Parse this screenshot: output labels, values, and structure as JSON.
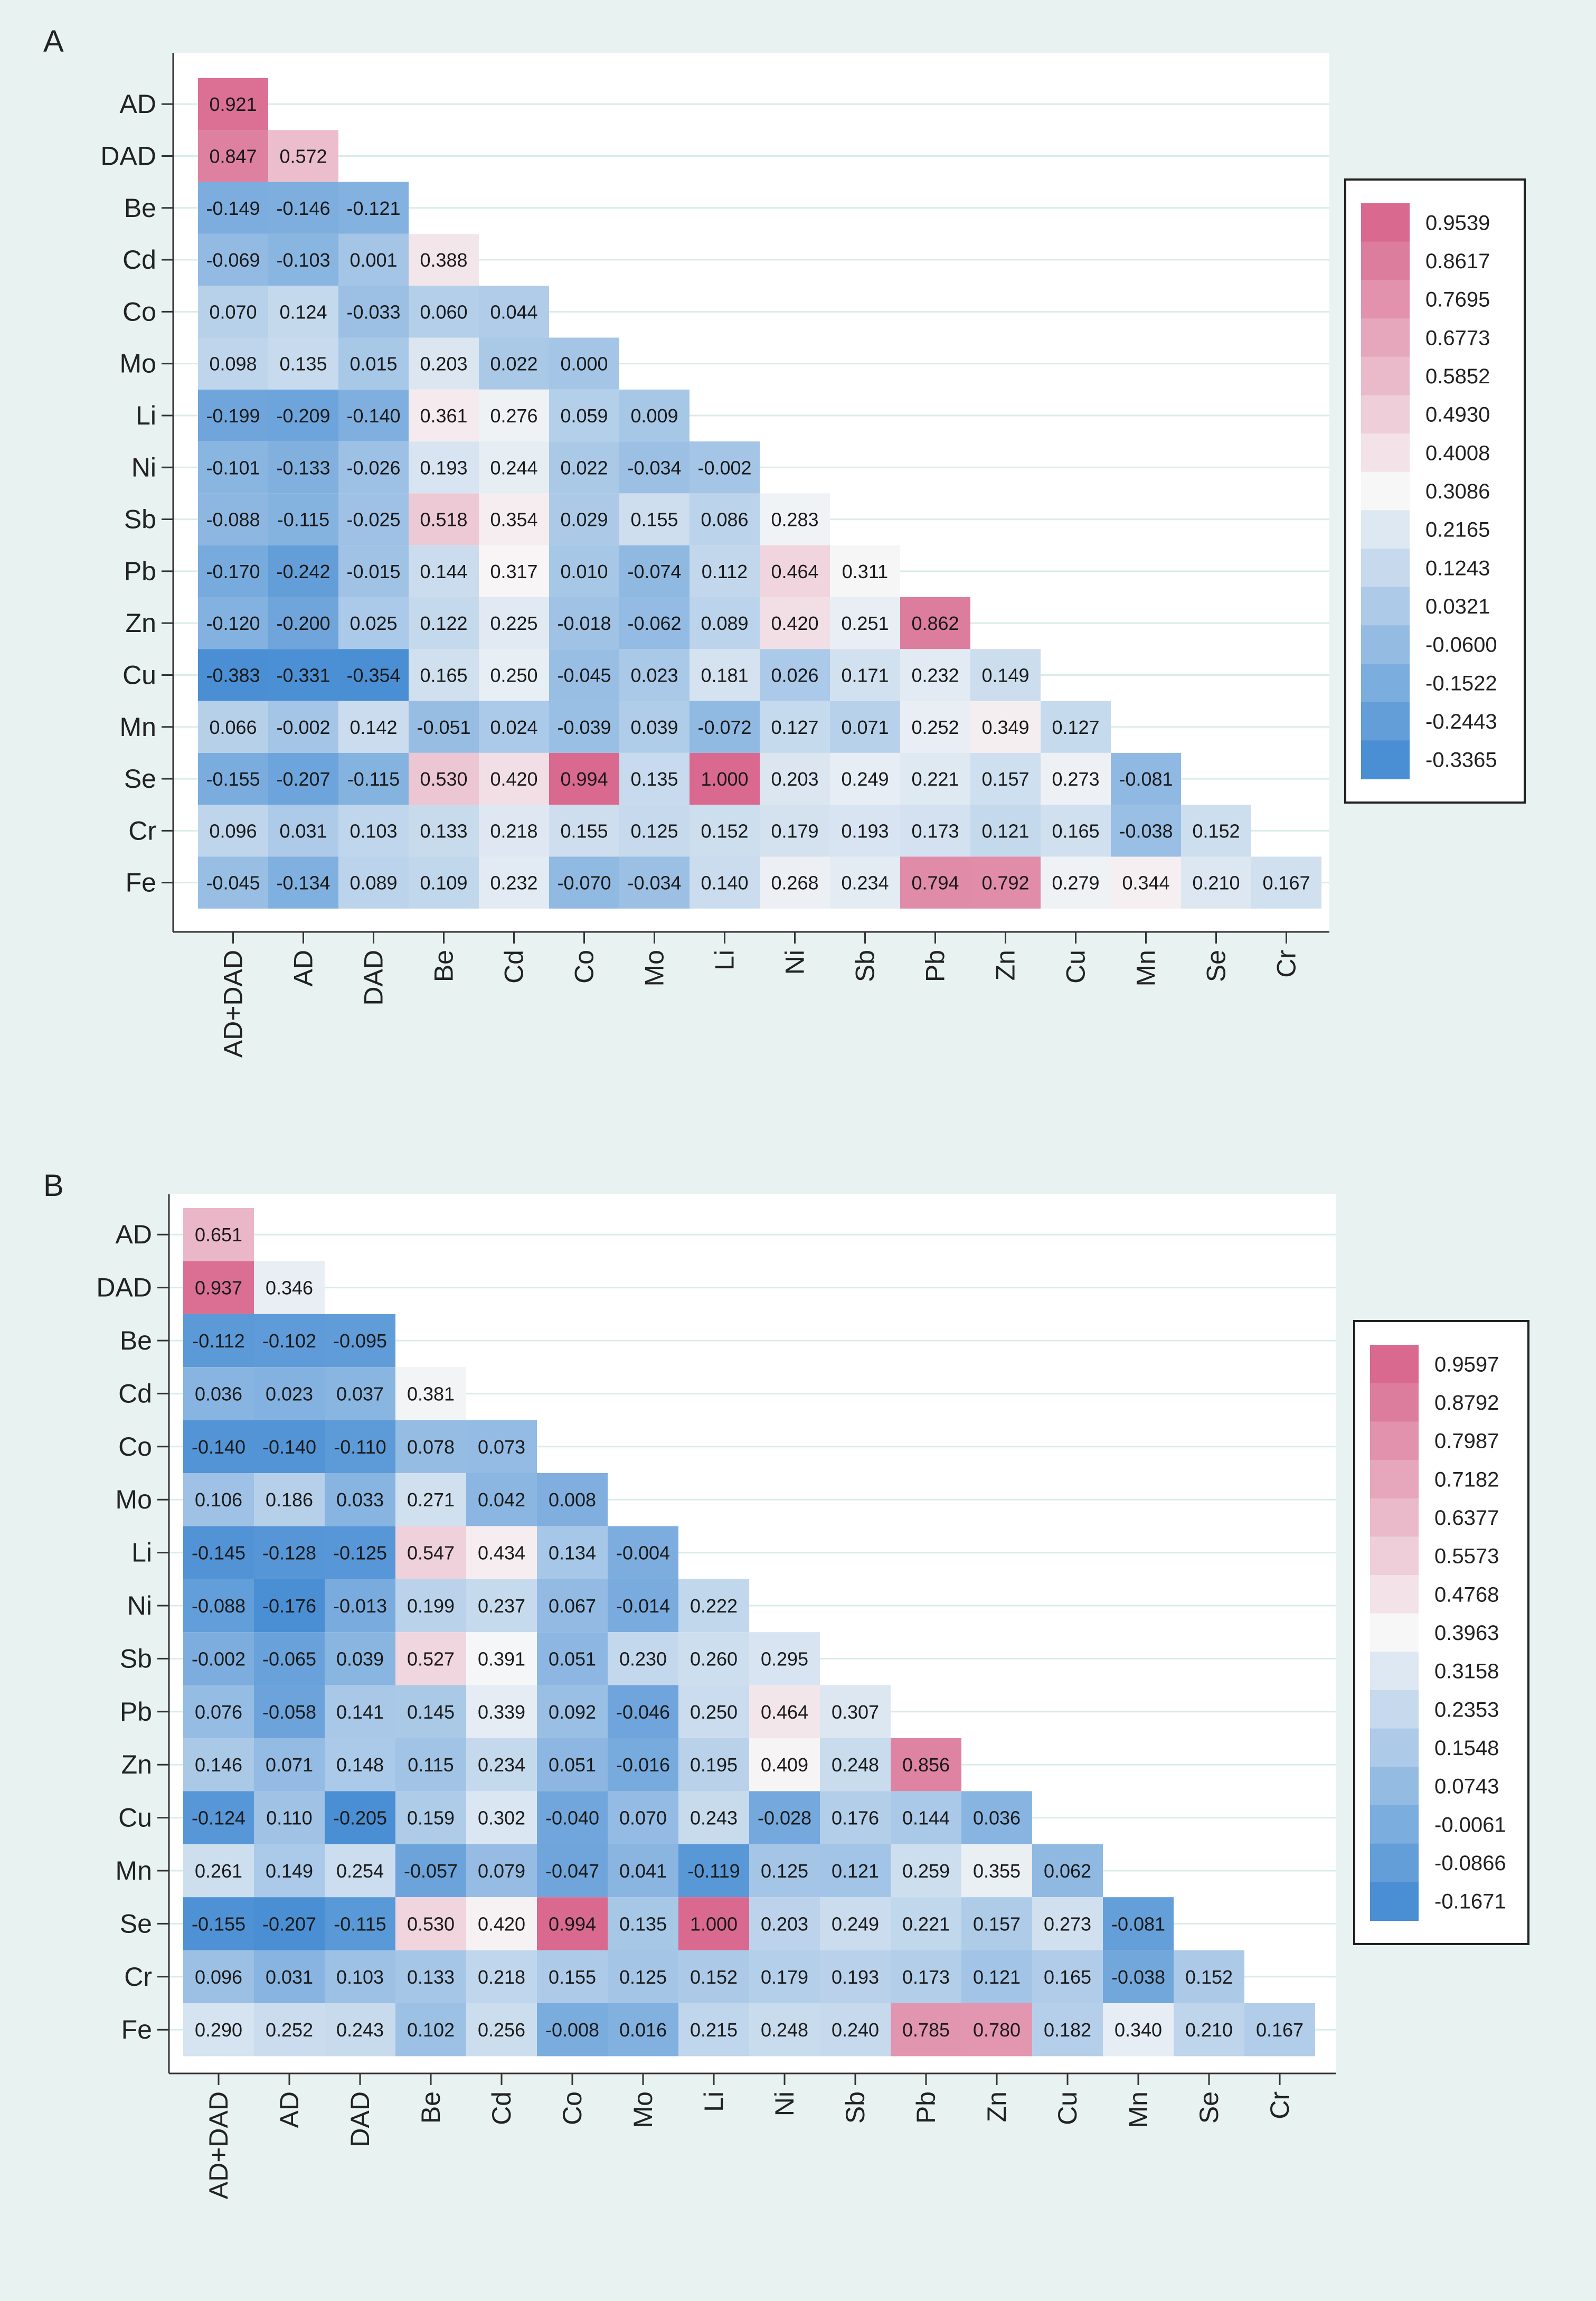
{
  "colors": {
    "background": "#e8f2f1",
    "panel": "#ffffff",
    "grid": "#d8ede9",
    "positive_max": "#d9698f",
    "neutral": "#f7f7f7",
    "negative_max": "#4a8fd4"
  },
  "chart_data": [
    {
      "type": "heatmap",
      "panel_label": "A",
      "title": "",
      "xlabel": "",
      "ylabel": "",
      "row_labels": [
        "AD",
        "DAD",
        "Be",
        "Cd",
        "Co",
        "Mo",
        "Li",
        "Ni",
        "Sb",
        "Pb",
        "Zn",
        "Cu",
        "Mn",
        "Se",
        "Cr",
        "Fe"
      ],
      "col_labels": [
        "AD+DAD",
        "AD",
        "DAD",
        "Be",
        "Cd",
        "Co",
        "Mo",
        "Li",
        "Ni",
        "Sb",
        "Pb",
        "Zn",
        "Cu",
        "Mn",
        "Se",
        "Cr"
      ],
      "cell_labels": [
        [
          "0.921"
        ],
        [
          "0.847",
          "0.572"
        ],
        [
          "-0.149",
          "-0.146",
          "-0.121"
        ],
        [
          "-0.069",
          "-0.103",
          "0.001",
          "0.388"
        ],
        [
          "0.070",
          "0.124",
          "-0.033",
          "0.060",
          "0.044"
        ],
        [
          "0.098",
          "0.135",
          "0.015",
          "0.203",
          "0.022",
          "0.000"
        ],
        [
          "-0.199",
          "-0.209",
          "-0.140",
          "0.361",
          "0.276",
          "0.059",
          "0.009"
        ],
        [
          "-0.101",
          "-0.133",
          "-0.026",
          "0.193",
          "0.244",
          "0.022",
          "-0.034",
          "-0.002"
        ],
        [
          "-0.088",
          "-0.115",
          "-0.025",
          "0.518",
          "0.354",
          "0.029",
          "0.155",
          "0.086",
          "0.283"
        ],
        [
          "-0.170",
          "-0.242",
          "-0.015",
          "0.144",
          "0.317",
          "0.010",
          "-0.074",
          "0.112",
          "0.464",
          "0.311"
        ],
        [
          "-0.120",
          "-0.200",
          "0.025",
          "0.122",
          "0.225",
          "-0.018",
          "-0.062",
          "0.089",
          "0.420",
          "0.251",
          "0.862"
        ],
        [
          "-0.383",
          "-0.331",
          "-0.354",
          "0.165",
          "0.250",
          "-0.045",
          "0.023",
          "0.181",
          "0.026",
          "0.171",
          "0.232",
          "0.149"
        ],
        [
          "0.066",
          "-0.002",
          "0.142",
          "-0.051",
          "0.024",
          "-0.039",
          "0.039",
          "-0.072",
          "0.127",
          "0.071",
          "0.252",
          "0.349",
          "0.127"
        ],
        [
          "-0.155",
          "-0.207",
          "-0.115",
          "0.530",
          "0.420",
          "0.994",
          "0.135",
          "1.000",
          "0.203",
          "0.249",
          "0.221",
          "0.157",
          "0.273",
          "-0.081"
        ],
        [
          "0.096",
          "0.031",
          "0.103",
          "0.133",
          "0.218",
          "0.155",
          "0.125",
          "0.152",
          "0.179",
          "0.193",
          "0.173",
          "0.121",
          "0.165",
          "-0.038",
          "0.152"
        ],
        [
          "-0.045",
          "-0.134",
          "0.089",
          "0.109",
          "0.232",
          "-0.070",
          "-0.034",
          "0.140",
          "0.268",
          "0.234",
          "0.794",
          "0.792",
          "0.279",
          "0.344",
          "0.210",
          "0.167"
        ]
      ],
      "legend_labels": [
        "0.9539",
        "0.8617",
        "0.7695",
        "0.6773",
        "0.5852",
        "0.4930",
        "0.4008",
        "0.3086",
        "0.2165",
        "0.1243",
        "0.0321",
        "-0.0600",
        "-0.1522",
        "-0.2443",
        "-0.3365"
      ],
      "color_range": [
        -0.3365,
        0.9539
      ]
    },
    {
      "type": "heatmap",
      "panel_label": "B",
      "title": "",
      "xlabel": "",
      "ylabel": "",
      "row_labels": [
        "AD",
        "DAD",
        "Be",
        "Cd",
        "Co",
        "Mo",
        "Li",
        "Ni",
        "Sb",
        "Pb",
        "Zn",
        "Cu",
        "Mn",
        "Se",
        "Cr",
        "Fe"
      ],
      "col_labels": [
        "AD+DAD",
        "AD",
        "DAD",
        "Be",
        "Cd",
        "Co",
        "Mo",
        "Li",
        "Ni",
        "Sb",
        "Pb",
        "Zn",
        "Cu",
        "Mn",
        "Se",
        "Cr"
      ],
      "cell_labels": [
        [
          "0.651"
        ],
        [
          "0.937",
          "0.346"
        ],
        [
          "-0.112",
          "-0.102",
          "-0.095"
        ],
        [
          "0.036",
          "0.023",
          "0.037",
          "0.381"
        ],
        [
          "-0.140",
          "-0.140",
          "-0.110",
          "0.078",
          "0.073"
        ],
        [
          "0.106",
          "0.186",
          "0.033",
          "0.271",
          "0.042",
          "0.008"
        ],
        [
          "-0.145",
          "-0.128",
          "-0.125",
          "0.547",
          "0.434",
          "0.134",
          "-0.004"
        ],
        [
          "-0.088",
          "-0.176",
          "-0.013",
          "0.199",
          "0.237",
          "0.067",
          "-0.014",
          "0.222"
        ],
        [
          "-0.002",
          "-0.065",
          "0.039",
          "0.527",
          "0.391",
          "0.051",
          "0.230",
          "0.260",
          "0.295"
        ],
        [
          "0.076",
          "-0.058",
          "0.141",
          "0.145",
          "0.339",
          "0.092",
          "-0.046",
          "0.250",
          "0.464",
          "0.307"
        ],
        [
          "0.146",
          "0.071",
          "0.148",
          "0.115",
          "0.234",
          "0.051",
          "-0.016",
          "0.195",
          "0.409",
          "0.248",
          "0.856"
        ],
        [
          "-0.124",
          "0.110",
          "-0.205",
          "0.159",
          "0.302",
          "-0.040",
          "0.070",
          "0.243",
          "-0.028",
          "0.176",
          "0.144",
          "0.036"
        ],
        [
          "0.261",
          "0.149",
          "0.254",
          "-0.057",
          "0.079",
          "-0.047",
          "0.041",
          "-0.119",
          "0.125",
          "0.121",
          "0.259",
          "0.355",
          "0.062"
        ],
        [
          "-0.155",
          "-0.207",
          "-0.115",
          "0.530",
          "0.420",
          "0.994",
          "0.135",
          "1.000",
          "0.203",
          "0.249",
          "0.221",
          "0.157",
          "0.273",
          "-0.081"
        ],
        [
          "0.096",
          "0.031",
          "0.103",
          "0.133",
          "0.218",
          "0.155",
          "0.125",
          "0.152",
          "0.179",
          "0.193",
          "0.173",
          "0.121",
          "0.165",
          "-0.038",
          "0.152"
        ],
        [
          "0.290",
          "0.252",
          "0.243",
          "0.102",
          "0.256",
          "-0.008",
          "0.016",
          "0.215",
          "0.248",
          "0.240",
          "0.785",
          "0.780",
          "0.182",
          "0.340",
          "0.210",
          "0.167"
        ]
      ],
      "legend_labels": [
        "0.9597",
        "0.8792",
        "0.7987",
        "0.7182",
        "0.6377",
        "0.5573",
        "0.4768",
        "0.3963",
        "0.3158",
        "0.2353",
        "0.1548",
        "0.0743",
        "-0.0061",
        "-0.0866",
        "-0.1671"
      ],
      "color_range": [
        -0.1671,
        0.9597
      ]
    }
  ]
}
